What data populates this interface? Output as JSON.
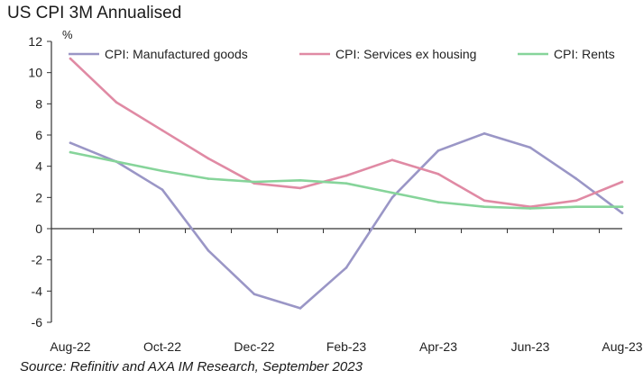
{
  "title": "US CPI 3M Annualised",
  "source": "Source: Refinitiv and AXA IM Research, September 2023",
  "colors": {
    "manufactured": "#9a96c6",
    "services": "#e08aa4",
    "rents": "#86d49a",
    "axis": "#333333"
  },
  "chart_data": {
    "type": "line",
    "title": "US CPI 3M Annualised",
    "ylabel": "%",
    "ylim": [
      -6,
      12
    ],
    "yticks": [
      -6,
      -4,
      -2,
      0,
      2,
      4,
      6,
      8,
      10,
      12
    ],
    "x": [
      "Aug-22",
      "Sep-22",
      "Oct-22",
      "Nov-22",
      "Dec-22",
      "Jan-23",
      "Feb-23",
      "Mar-23",
      "Apr-23",
      "May-23",
      "Jun-23",
      "Jul-23",
      "Aug-23"
    ],
    "xtick_labels": [
      "Aug-22",
      "Oct-22",
      "Dec-22",
      "Feb-23",
      "Apr-23",
      "Jun-23",
      "Aug-23"
    ],
    "legend_position": "top",
    "grid": false,
    "series": [
      {
        "name": "CPI: Manufactured goods",
        "color": "#9a96c6",
        "values": [
          5.5,
          4.3,
          2.5,
          -1.4,
          -4.2,
          -5.1,
          -2.5,
          2.0,
          5.0,
          6.1,
          5.2,
          3.2,
          1.0
        ]
      },
      {
        "name": "CPI: Services ex housing",
        "color": "#e08aa4",
        "values": [
          10.9,
          8.1,
          6.3,
          4.5,
          2.9,
          2.6,
          3.4,
          4.4,
          3.5,
          1.8,
          1.4,
          1.8,
          3.0
        ]
      },
      {
        "name": "CPI: Rents",
        "color": "#86d49a",
        "values": [
          4.9,
          4.3,
          3.7,
          3.2,
          3.0,
          3.1,
          2.9,
          2.3,
          1.7,
          1.4,
          1.3,
          1.4,
          1.4
        ]
      }
    ]
  }
}
